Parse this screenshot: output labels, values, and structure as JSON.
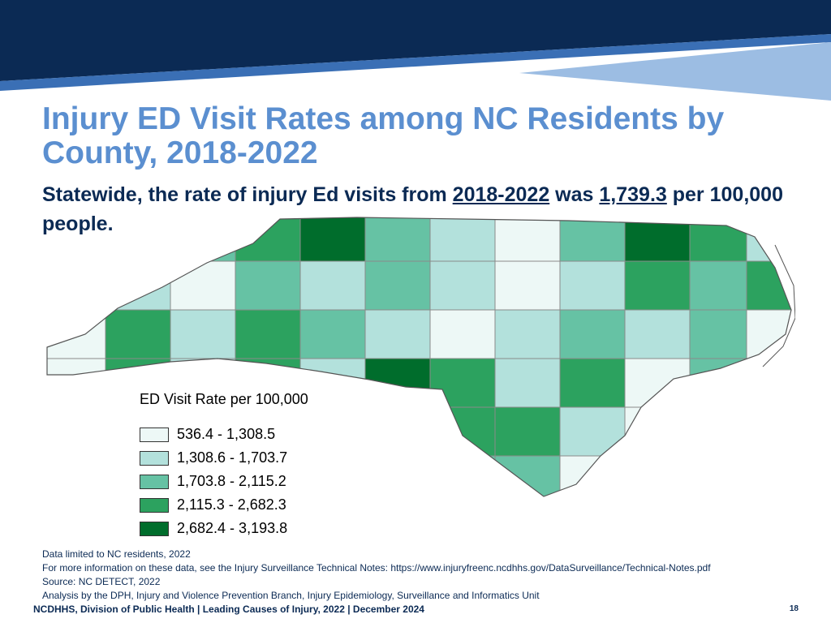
{
  "title": "Injury ED Visit Rates among NC Residents by County, 2018-2022",
  "subtitle": {
    "prefix": "Statewide, the rate of injury Ed visits from ",
    "period": "2018-2022",
    "middle": " was ",
    "rate": "1,739.3",
    "suffix": " per 100,000 people."
  },
  "colors": {
    "banner_dark": "#0b2a54",
    "banner_mid": "#3a6fb5",
    "banner_light": "#9cbde3",
    "title": "#5b8fd0",
    "text": "#0b2a54",
    "bin1": "#edf8f6",
    "bin2": "#b3e1dc",
    "bin3": "#66c2a4",
    "bin4": "#2ca25f",
    "bin5": "#006d2c"
  },
  "map": {
    "legend_title": "ED Visit Rate per 100,000",
    "legend_items": [
      {
        "label": "536.4 - 1,308.5",
        "color": "#edf8f6"
      },
      {
        "label": "1,308.6 - 1,703.7",
        "color": "#b3e1dc"
      },
      {
        "label": "1,703.8 - 2,115.2",
        "color": "#66c2a4"
      },
      {
        "label": "2,115.3 - 2,682.3",
        "color": "#2ca25f"
      },
      {
        "label": "2,682.4 - 3,193.8",
        "color": "#006d2c"
      }
    ]
  },
  "notes": [
    "Data limited to NC residents, 2022",
    "For more information on these data, see the Injury Surveillance Technical Notes: https://www.injuryfreenc.ncdhhs.gov/DataSurveillance/Technical-Notes.pdf",
    "Source: NC DETECT, 2022",
    "Analysis by the DPH, Injury and Violence Prevention Branch, Injury Epidemiology, Surveillance and Informatics Unit"
  ],
  "footer": "NCDHHS, Division of Public Health | Leading Causes of Injury, 2022 | December 2024",
  "page_number": "18"
}
